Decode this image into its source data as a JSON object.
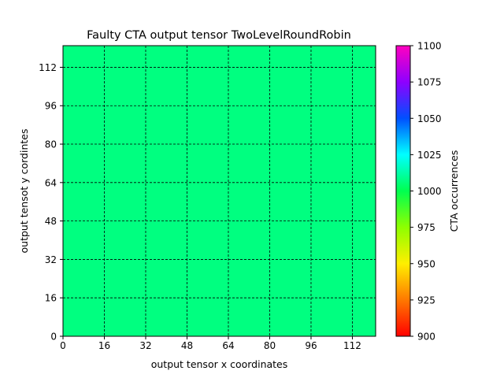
{
  "chart_data": {
    "type": "heatmap",
    "title": "Faulty CTA output tensor TwoLevelRoundRobin",
    "xlabel": "output tensor x coordinates",
    "ylabel": "output tensot y cordintes",
    "xlim": [
      0,
      121
    ],
    "ylim": [
      0,
      121
    ],
    "xticks": [
      0,
      16,
      32,
      48,
      64,
      80,
      96,
      112
    ],
    "yticks": [
      0,
      16,
      32,
      48,
      64,
      80,
      96,
      112
    ],
    "grid": true,
    "value": 1000,
    "fill_color": "#00ff80",
    "colorbar": {
      "label": "CTA occurrences",
      "min": 900,
      "max": 1100,
      "ticks": [
        900,
        925,
        950,
        975,
        1000,
        1025,
        1050,
        1075,
        1100
      ],
      "colormap": "gist_rainbow"
    }
  }
}
